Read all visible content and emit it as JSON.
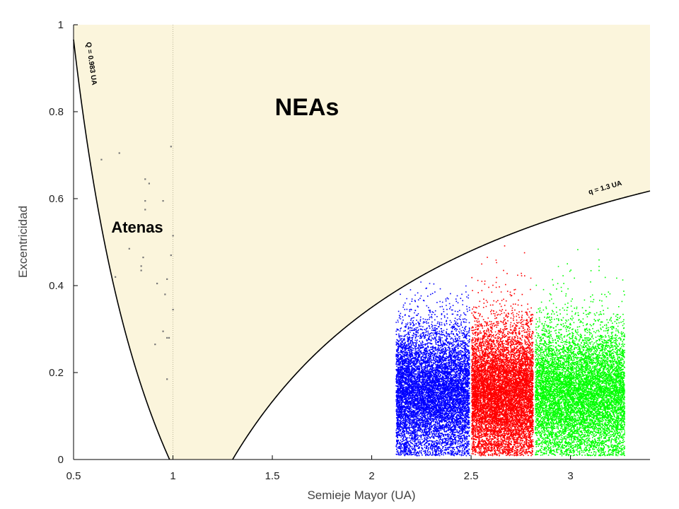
{
  "chart_data": {
    "type": "scatter",
    "title": "",
    "xlabel": "Semieje Mayor (UA)",
    "ylabel": "Excentricidad",
    "xlim": [
      0.5,
      3.4
    ],
    "ylim": [
      0,
      1
    ],
    "x_ticks": [
      "0.5",
      "1",
      "1.5",
      "2",
      "2.5",
      "3"
    ],
    "y_ticks": [
      "0",
      "0.2",
      "0.4",
      "0.6",
      "0.8",
      "1"
    ],
    "grid": false,
    "region_labels": {
      "neas": "NEAs",
      "atenas": "Atenas"
    },
    "curves": [
      {
        "label": "Q = 0.983 UA",
        "Q": 0.983
      },
      {
        "label": "q = 1.3 UA",
        "q": 1.3
      }
    ],
    "reference_line_x": 1.0,
    "colors": {
      "nea_region": "#fbf5dc",
      "curve": "#000000",
      "atenas_points": "#777777",
      "group_1": "#0000ff",
      "group_2": "#ff0000",
      "group_3": "#00ff00"
    },
    "atenas_points": [
      {
        "x": 0.64,
        "y": 0.69
      },
      {
        "x": 0.73,
        "y": 0.705
      },
      {
        "x": 0.99,
        "y": 0.72
      },
      {
        "x": 0.86,
        "y": 0.645
      },
      {
        "x": 0.88,
        "y": 0.635
      },
      {
        "x": 0.86,
        "y": 0.595
      },
      {
        "x": 0.95,
        "y": 0.595
      },
      {
        "x": 0.86,
        "y": 0.575
      },
      {
        "x": 1.0,
        "y": 0.515
      },
      {
        "x": 0.78,
        "y": 0.485
      },
      {
        "x": 0.85,
        "y": 0.465
      },
      {
        "x": 0.99,
        "y": 0.47
      },
      {
        "x": 0.84,
        "y": 0.445
      },
      {
        "x": 0.84,
        "y": 0.435
      },
      {
        "x": 0.71,
        "y": 0.42
      },
      {
        "x": 0.97,
        "y": 0.415
      },
      {
        "x": 0.92,
        "y": 0.405
      },
      {
        "x": 0.96,
        "y": 0.38
      },
      {
        "x": 1.0,
        "y": 0.345
      },
      {
        "x": 0.95,
        "y": 0.295
      },
      {
        "x": 0.97,
        "y": 0.28
      },
      {
        "x": 0.98,
        "y": 0.28
      },
      {
        "x": 0.91,
        "y": 0.265
      },
      {
        "x": 0.97,
        "y": 0.185
      }
    ],
    "series": [
      {
        "x_range": [
          2.12,
          2.49
        ],
        "y_range": [
          0.01,
          0.41
        ],
        "ecc_peak": 0.15,
        "count": 9000
      },
      {
        "x_range": [
          2.5,
          2.81
        ],
        "y_range": [
          0.01,
          0.5
        ],
        "ecc_peak": 0.15,
        "count": 9000
      },
      {
        "x_range": [
          2.82,
          3.27
        ],
        "y_range": [
          0.01,
          0.57
        ],
        "ecc_peak": 0.15,
        "count": 9000
      }
    ]
  }
}
